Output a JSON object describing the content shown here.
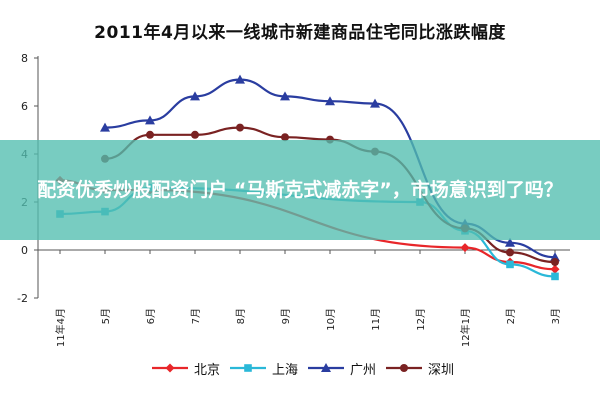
{
  "page": {
    "banner_text": "配资优秀炒股配资门户 “马斯克式减赤字”，市场意识到了吗？"
  },
  "chart_data": {
    "type": "line",
    "title": "2011年4月以来一线城市新建商品住宅同比涨跌幅度",
    "xlabel": "",
    "ylabel": "",
    "ylim": [
      -2,
      8
    ],
    "yticks": [
      -2,
      0,
      2,
      4,
      6,
      8
    ],
    "grid": false,
    "legend_position": "bottom",
    "categories": [
      "11年4月",
      "5月",
      "6月",
      "7月",
      "8月",
      "9月",
      "10月",
      "11月",
      "12月",
      "12年1月",
      "2月",
      "3月"
    ],
    "x_tick_labels": [
      "11年4月",
      "5月",
      "6月",
      "7月",
      "8月",
      "9月",
      "10月",
      "11月",
      "12月",
      "12年1月",
      "2月",
      "3月"
    ],
    "series": [
      {
        "name": "北京",
        "color": "#e8262a",
        "marker": "diamond",
        "values": [
          2.9,
          2.5,
          2.5,
          null,
          null,
          null,
          null,
          null,
          null,
          0.1,
          -0.5,
          -0.8
        ]
      },
      {
        "name": "上海",
        "color": "#2ab8d8",
        "marker": "square",
        "values": [
          1.5,
          1.6,
          2.6,
          null,
          null,
          null,
          null,
          null,
          2.0,
          0.8,
          -0.6,
          -1.1
        ]
      },
      {
        "name": "广州",
        "color": "#2a3da0",
        "marker": "triangle",
        "values": [
          null,
          5.1,
          5.4,
          6.4,
          7.1,
          6.4,
          6.2,
          6.1,
          null,
          1.1,
          0.3,
          -0.3
        ]
      },
      {
        "name": "深圳",
        "color": "#7a2222",
        "marker": "circle",
        "values": [
          null,
          3.8,
          4.8,
          4.8,
          5.1,
          4.7,
          4.6,
          4.1,
          null,
          0.9,
          -0.1,
          -0.5
        ]
      }
    ]
  }
}
